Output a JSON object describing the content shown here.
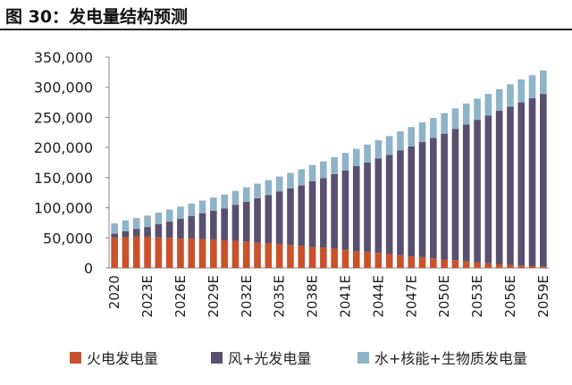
{
  "title": "图 30：发电量结构预测",
  "colors": {
    "fire": "#c9512b",
    "wind_solar": "#59506f",
    "hydro": "#8fb4c8"
  },
  "chart_data": {
    "type": "bar",
    "stacked": true,
    "title": "图 30：发电量结构预测",
    "xlabel": "",
    "ylabel": "",
    "ylim": [
      0,
      350000
    ],
    "yticks": [
      "0",
      "50,000",
      "100,000",
      "150,000",
      "200,000",
      "250,000",
      "300,000",
      "350,000"
    ],
    "grid": false,
    "legend_position": "bottom",
    "categories": [
      "2020",
      "2021E",
      "2022E",
      "2023E",
      "2024E",
      "2025E",
      "2026E",
      "2027E",
      "2028E",
      "2029E",
      "2030E",
      "2031E",
      "2032E",
      "2033E",
      "2034E",
      "2035E",
      "2036E",
      "2037E",
      "2038E",
      "2039E",
      "2040E",
      "2041E",
      "2042E",
      "2043E",
      "2044E",
      "2045E",
      "2046E",
      "2047E",
      "2048E",
      "2049E",
      "2050E",
      "2051E",
      "2052E",
      "2053E",
      "2054E",
      "2055E",
      "2056E",
      "2057E",
      "2058E",
      "2059E"
    ],
    "xtick_labels_shown": [
      "2020",
      "2023E",
      "2026E",
      "2029E",
      "2032E",
      "2035E",
      "2038E",
      "2041E",
      "2044E",
      "2047E",
      "2050E",
      "2053E",
      "2056E",
      "2059E"
    ],
    "series": [
      {
        "name": "火电发电量",
        "values": [
          50000,
          51000,
          52000,
          52000,
          51000,
          50000,
          49000,
          49000,
          48000,
          47000,
          46000,
          45000,
          44000,
          42000,
          41000,
          40000,
          38000,
          37000,
          35000,
          34000,
          32000,
          30000,
          28000,
          27000,
          25000,
          23000,
          21000,
          19000,
          18000,
          16000,
          14000,
          13000,
          11000,
          9000,
          8000,
          6000,
          5000,
          4000,
          3000,
          2000
        ]
      },
      {
        "name": "风+光发电量",
        "values": [
          7000,
          10000,
          13000,
          16000,
          22000,
          27000,
          33000,
          37000,
          43000,
          48000,
          53000,
          60000,
          66000,
          74000,
          80000,
          87000,
          94000,
          100000,
          109000,
          115000,
          124000,
          132000,
          141000,
          148000,
          157000,
          165000,
          174000,
          183000,
          191000,
          200000,
          209000,
          218000,
          227000,
          237000,
          245000,
          255000,
          263000,
          271000,
          279000,
          287000
        ]
      },
      {
        "name": "水+核能+生物质发电量",
        "values": [
          17000,
          18000,
          18000,
          19000,
          19000,
          20000,
          20000,
          21000,
          21000,
          22000,
          23000,
          23000,
          24000,
          24000,
          25000,
          25000,
          26000,
          27000,
          27000,
          28000,
          28000,
          29000,
          29000,
          30000,
          30000,
          31000,
          32000,
          32000,
          33000,
          33000,
          34000,
          34000,
          35000,
          35000,
          36000,
          36000,
          37000,
          38000,
          38000,
          39000
        ]
      }
    ]
  }
}
